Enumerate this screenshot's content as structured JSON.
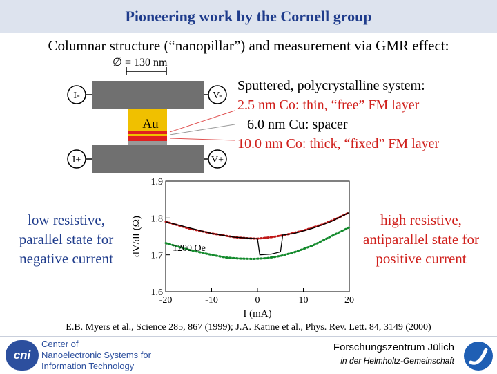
{
  "header": {
    "title": "Pioneering work by the Cornell group"
  },
  "subtitle": "Columnar structure (“nanopillar”) and measurement via GMR effect:",
  "diagram": {
    "diameter_label": "∅ = 130 nm",
    "terminal_i_minus": "I-",
    "terminal_v_minus": "V-",
    "terminal_i_plus": "I+",
    "terminal_v_plus": "V+",
    "au_label": "Au"
  },
  "layers": {
    "intro": "Sputtered, polycrystalline system:",
    "free": "2.5 nm Co: thin, “free” FM layer",
    "spacer": "6.0 nm Cu: spacer",
    "fixed": "10.0 nm Co: thick, “fixed” FM layer"
  },
  "notes": {
    "left": [
      "low resistive,",
      "parallel state for",
      "negative current"
    ],
    "right": [
      "high resistive,",
      "antiparallel state for",
      "positive current"
    ]
  },
  "chart_data": {
    "type": "line",
    "ylabel": "dV/dI (Ω)",
    "xlabel": "I (mA)",
    "xlim": [
      -20,
      20
    ],
    "ylim": [
      1.6,
      1.9
    ],
    "xticks": [
      "-20",
      "-10",
      "0",
      "10",
      "20"
    ],
    "yticks": [
      "1.6",
      "1.7",
      "1.8",
      "1.9"
    ],
    "annotation": "1200 Oe",
    "series": [
      {
        "color": "#c01818",
        "style": "dotted",
        "x": [
          -20,
          -15,
          -10,
          -5,
          -2,
          0,
          3,
          6,
          10,
          14,
          17,
          20
        ],
        "y": [
          1.79,
          1.772,
          1.758,
          1.748,
          1.745,
          1.744,
          1.748,
          1.754,
          1.766,
          1.782,
          1.797,
          1.815
        ]
      },
      {
        "color": "#138a2c",
        "style": "dotted",
        "x": [
          -20,
          -15,
          -10,
          -7,
          -4,
          -1,
          2,
          5,
          8,
          12,
          16,
          20
        ],
        "y": [
          1.732,
          1.714,
          1.7,
          1.693,
          1.69,
          1.689,
          1.691,
          1.697,
          1.707,
          1.725,
          1.75,
          1.775
        ]
      },
      {
        "color": "#000000",
        "style": "solid",
        "x": [
          -20,
          -10,
          -5,
          0,
          0.5,
          3,
          5,
          5.5,
          8,
          12,
          16,
          20
        ],
        "y": [
          1.79,
          1.758,
          1.748,
          1.744,
          1.7,
          1.702,
          1.708,
          1.754,
          1.758,
          1.772,
          1.79,
          1.815
        ]
      }
    ]
  },
  "reference": "E.B. Myers et al., Science 285, 867 (1999); J.A. Katine et al., Phys. Rev. Lett. 84, 3149 (2000)",
  "footer": {
    "cni_logo": "cni",
    "cni_lines": [
      "Center of",
      "Nanoelectronic Systems for",
      "Information Technology"
    ],
    "fz_name": "Forschungszentrum Jülich",
    "fz_sub": "in der Helmholtz-Gemeinschaft"
  }
}
